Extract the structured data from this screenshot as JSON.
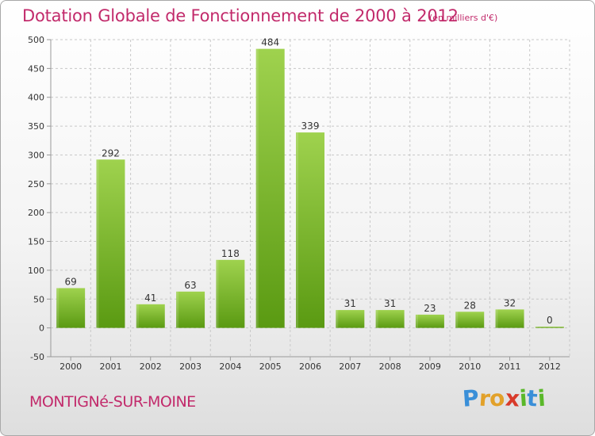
{
  "header": {
    "title": "Dotation Globale de Fonctionnement de 2000 à 2012",
    "subtitle": "(en milliers d'€)"
  },
  "footer": {
    "place": "MONTIGNé-SUR-MOINE",
    "logo_text": "Proxiti",
    "logo_letters": [
      {
        "ch": "P",
        "color": "#3a8fd8"
      },
      {
        "ch": "r",
        "color": "#e2a12a"
      },
      {
        "ch": "o",
        "color": "#e2a12a"
      },
      {
        "ch": "x",
        "color": "#d83a2a"
      },
      {
        "ch": "i",
        "color": "#5ab82a"
      },
      {
        "ch": "t",
        "color": "#3a8fd8"
      },
      {
        "ch": "i",
        "color": "#5ab82a"
      }
    ]
  },
  "colors": {
    "accent": "#c22a6b",
    "bar_light": "#9fd24e",
    "bar_dark": "#5a9a12",
    "grid": "#c8c8c8",
    "axis_text": "#333333"
  },
  "chart_data": {
    "type": "bar",
    "categories": [
      "2000",
      "2001",
      "2002",
      "2003",
      "2004",
      "2005",
      "2006",
      "2007",
      "2008",
      "2009",
      "2010",
      "2011",
      "2012"
    ],
    "values": [
      69,
      292,
      41,
      63,
      118,
      484,
      339,
      31,
      31,
      23,
      28,
      32,
      0
    ],
    "ylim": [
      -50,
      500
    ],
    "yticks": [
      -50,
      0,
      50,
      100,
      150,
      200,
      250,
      300,
      350,
      400,
      450,
      500
    ],
    "grid": true,
    "legend": "none"
  }
}
